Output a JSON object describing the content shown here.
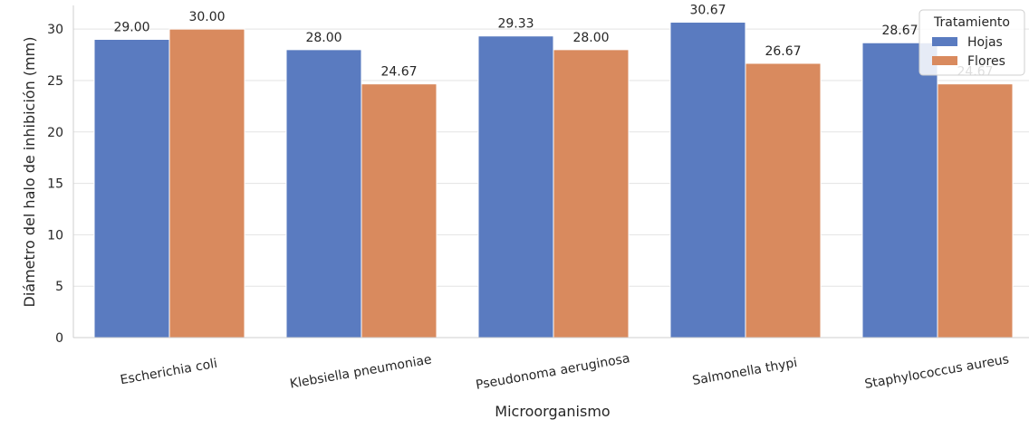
{
  "chart_data": {
    "type": "bar",
    "title": "",
    "xlabel": "Microorganismo",
    "ylabel": "Diámetro del halo de inhibición (mm)",
    "ylim": [
      0,
      32.3
    ],
    "yticks": [
      0,
      5,
      10,
      15,
      20,
      25,
      30
    ],
    "grid": true,
    "categories": [
      "Escherichia coli",
      "Klebsiella pneumoniae",
      "Pseudonoma aeruginosa",
      "Salmonella thypi",
      "Staphylococcus aureus"
    ],
    "series": [
      {
        "name": "Hojas",
        "color": "#5a7bc0",
        "values": [
          29.0,
          28.0,
          29.33,
          30.67,
          28.67
        ],
        "labels": [
          "29.00",
          "28.00",
          "29.33",
          "30.67",
          "28.67"
        ]
      },
      {
        "name": "Flores",
        "color": "#d98a5e",
        "values": [
          30.0,
          24.67,
          28.0,
          26.67,
          24.67
        ],
        "labels": [
          "30.00",
          "24.67",
          "28.00",
          "26.67",
          "24.67"
        ]
      }
    ],
    "legend": {
      "title": "Tratamiento",
      "position": "top-right"
    }
  }
}
